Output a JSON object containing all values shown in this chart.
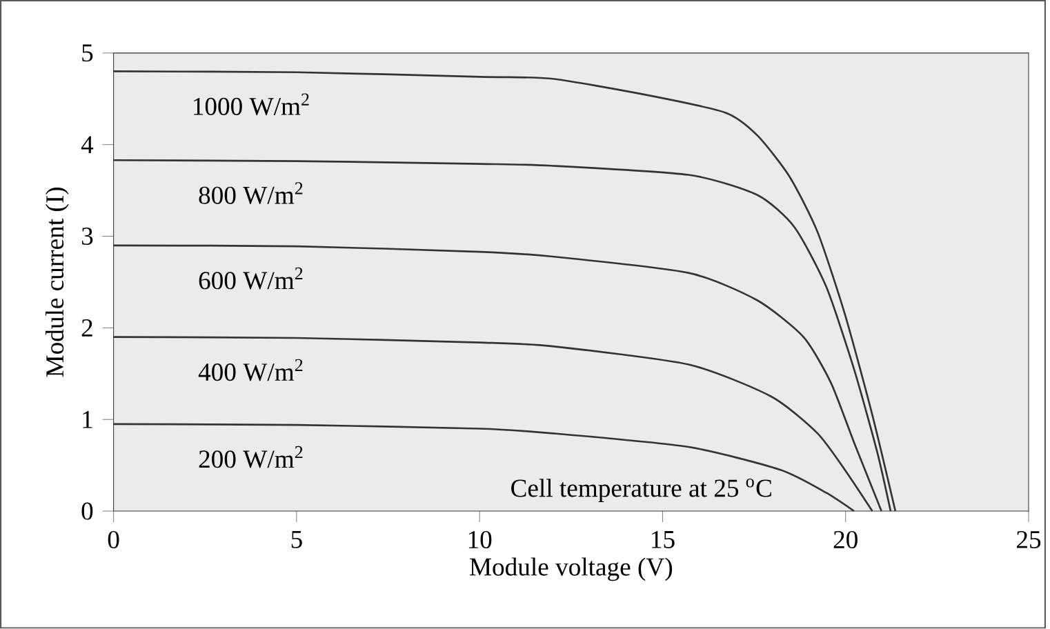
{
  "chart_data": {
    "type": "line",
    "xlabel": "Module voltage (V)",
    "ylabel": "Module current (I)",
    "xlim": [
      0,
      25
    ],
    "ylim": [
      0,
      5
    ],
    "xticks": [
      0,
      5,
      10,
      15,
      20,
      25
    ],
    "yticks": [
      0,
      1,
      2,
      3,
      4,
      5
    ],
    "grid": false,
    "marker": "none",
    "line_style": "solid",
    "annotations": [
      "Cell temperature at 25 $^{o}$C"
    ],
    "series": [
      {
        "name": "1000 W/m$^{2}$",
        "color": "#333333",
        "x": [
          0,
          5,
          10,
          11.95,
          14.46,
          16.71,
          17.59,
          18.47,
          19.23,
          19.98,
          20.73,
          21.36
        ],
        "values": [
          4.8,
          4.79,
          4.74,
          4.72,
          4.55,
          4.35,
          4.1,
          3.65,
          3.05,
          2.15,
          1.05,
          0
        ]
      },
      {
        "name": "800 W/m$^{2}$",
        "color": "#333333",
        "x": [
          0,
          5,
          10,
          11.95,
          15.71,
          17.59,
          18.6,
          19.47,
          20.23,
          20.86,
          21.23
        ],
        "values": [
          3.83,
          3.82,
          3.79,
          3.77,
          3.67,
          3.45,
          3.1,
          2.45,
          1.55,
          0.65,
          0
        ]
      },
      {
        "name": "600 W/m$^{2}$",
        "color": "#333333",
        "x": [
          0,
          5,
          10,
          11.95,
          15.71,
          17.59,
          18.85,
          19.6,
          20.23,
          20.98
        ],
        "values": [
          2.9,
          2.89,
          2.83,
          2.78,
          2.6,
          2.3,
          1.9,
          1.4,
          0.75,
          0
        ]
      },
      {
        "name": "400 W/m$^{2}$",
        "color": "#333333",
        "x": [
          0,
          5,
          10,
          11.95,
          15.71,
          17.97,
          19.23,
          19.98,
          20.73
        ],
        "values": [
          1.9,
          1.89,
          1.84,
          1.8,
          1.6,
          1.25,
          0.85,
          0.45,
          0
        ]
      },
      {
        "name": "200 W/m$^{2}$",
        "color": "#333333",
        "x": [
          0,
          5,
          10,
          11.95,
          15.71,
          18.22,
          19.47,
          20.23
        ],
        "values": [
          0.95,
          0.94,
          0.9,
          0.85,
          0.7,
          0.45,
          0.2,
          0
        ]
      }
    ]
  }
}
